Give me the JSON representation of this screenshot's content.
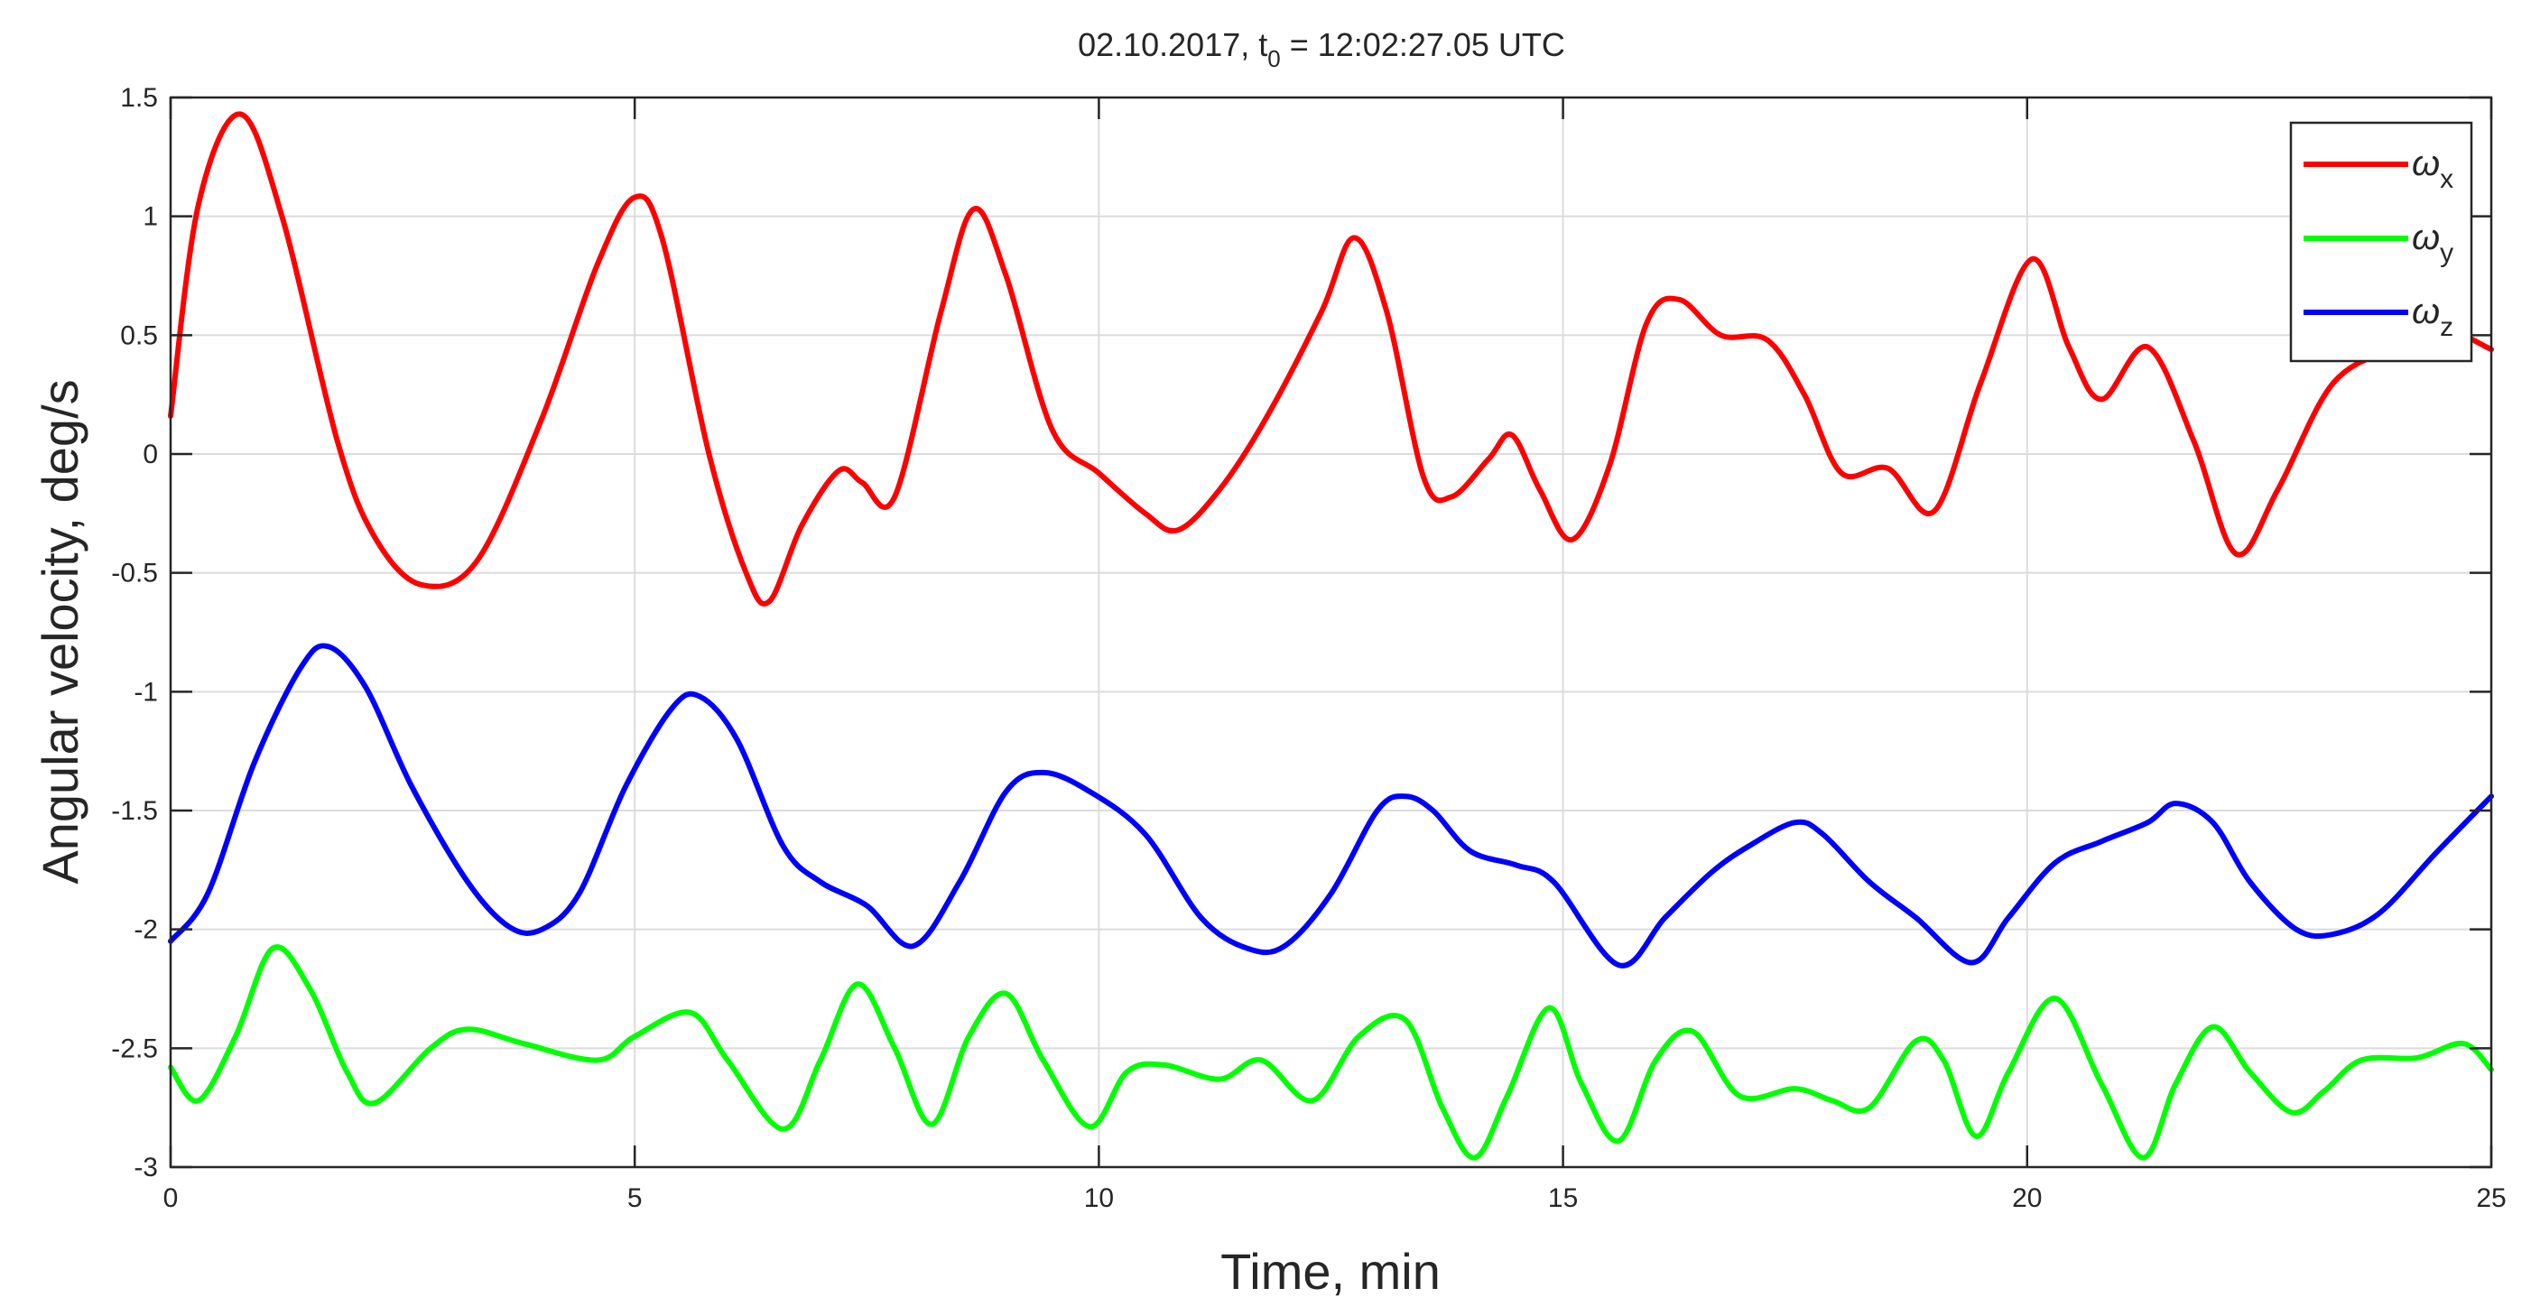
{
  "chart_data": {
    "type": "line",
    "title": {
      "date": "02.10.2017, t",
      "subscript": "0",
      "rest": " = 12:02:27.05 UTC"
    },
    "xlabel": "Time, min",
    "ylabel": "Angular velocity, deg/s",
    "xlim": [
      0,
      25
    ],
    "ylim": [
      -3,
      1.5
    ],
    "xticks": [
      0,
      5,
      10,
      15,
      20,
      25
    ],
    "xtick_labels": [
      "0",
      "5",
      "10",
      "15",
      "20",
      "25"
    ],
    "yticks": [
      -3,
      -2.5,
      -2,
      -1.5,
      -1,
      -0.5,
      0,
      0.5,
      1,
      1.5
    ],
    "ytick_labels": [
      "-3",
      "-2.5",
      "-2",
      "-1.5",
      "-1",
      "-0.5",
      "0",
      "0.5",
      "1",
      "1.5"
    ],
    "grid": true,
    "legend": {
      "position": "top-right"
    },
    "series": [
      {
        "symbol": "ω",
        "subscript": "x",
        "color": "#ff0000",
        "points": [
          [
            0,
            0.16
          ],
          [
            0.3,
            1.05
          ],
          [
            0.75,
            1.43
          ],
          [
            1.2,
            1.0
          ],
          [
            1.8,
            0.05
          ],
          [
            2.2,
            -0.35
          ],
          [
            2.7,
            -0.55
          ],
          [
            3.3,
            -0.45
          ],
          [
            4.0,
            0.15
          ],
          [
            4.6,
            0.8
          ],
          [
            5.0,
            1.08
          ],
          [
            5.3,
            0.9
          ],
          [
            5.8,
            0.0
          ],
          [
            6.2,
            -0.5
          ],
          [
            6.45,
            -0.62
          ],
          [
            6.8,
            -0.3
          ],
          [
            7.2,
            -0.07
          ],
          [
            7.45,
            -0.12
          ],
          [
            7.8,
            -0.18
          ],
          [
            8.3,
            0.6
          ],
          [
            8.65,
            1.03
          ],
          [
            9.0,
            0.75
          ],
          [
            9.5,
            0.1
          ],
          [
            10.0,
            -0.08
          ],
          [
            10.5,
            -0.25
          ],
          [
            10.85,
            -0.32
          ],
          [
            11.3,
            -0.15
          ],
          [
            11.8,
            0.15
          ],
          [
            12.4,
            0.6
          ],
          [
            12.75,
            0.91
          ],
          [
            13.1,
            0.6
          ],
          [
            13.5,
            -0.1
          ],
          [
            13.8,
            -0.18
          ],
          [
            14.2,
            -0.02
          ],
          [
            14.45,
            0.08
          ],
          [
            14.75,
            -0.15
          ],
          [
            15.1,
            -0.36
          ],
          [
            15.5,
            -0.05
          ],
          [
            15.9,
            0.55
          ],
          [
            16.25,
            0.65
          ],
          [
            16.7,
            0.5
          ],
          [
            17.2,
            0.48
          ],
          [
            17.6,
            0.25
          ],
          [
            18.0,
            -0.08
          ],
          [
            18.5,
            -0.06
          ],
          [
            19.0,
            -0.24
          ],
          [
            19.5,
            0.3
          ],
          [
            20.05,
            0.82
          ],
          [
            20.45,
            0.45
          ],
          [
            20.8,
            0.23
          ],
          [
            21.3,
            0.45
          ],
          [
            21.8,
            0.05
          ],
          [
            22.25,
            -0.42
          ],
          [
            22.7,
            -0.15
          ],
          [
            23.3,
            0.3
          ],
          [
            24.0,
            0.45
          ],
          [
            24.5,
            0.52
          ],
          [
            25.0,
            0.44
          ]
        ]
      },
      {
        "symbol": "ω",
        "subscript": "y",
        "color": "#00ff00",
        "points": [
          [
            0,
            -2.58
          ],
          [
            0.3,
            -2.72
          ],
          [
            0.7,
            -2.45
          ],
          [
            1.1,
            -2.08
          ],
          [
            1.5,
            -2.25
          ],
          [
            1.9,
            -2.6
          ],
          [
            2.2,
            -2.73
          ],
          [
            2.8,
            -2.5
          ],
          [
            3.2,
            -2.42
          ],
          [
            3.8,
            -2.48
          ],
          [
            4.6,
            -2.55
          ],
          [
            5.0,
            -2.45
          ],
          [
            5.6,
            -2.35
          ],
          [
            6.0,
            -2.55
          ],
          [
            6.6,
            -2.84
          ],
          [
            7.0,
            -2.55
          ],
          [
            7.4,
            -2.23
          ],
          [
            7.8,
            -2.5
          ],
          [
            8.2,
            -2.82
          ],
          [
            8.6,
            -2.45
          ],
          [
            9.0,
            -2.27
          ],
          [
            9.4,
            -2.55
          ],
          [
            9.9,
            -2.83
          ],
          [
            10.3,
            -2.6
          ],
          [
            10.7,
            -2.57
          ],
          [
            11.3,
            -2.63
          ],
          [
            11.75,
            -2.55
          ],
          [
            12.3,
            -2.72
          ],
          [
            12.8,
            -2.45
          ],
          [
            13.3,
            -2.38
          ],
          [
            13.7,
            -2.75
          ],
          [
            14.05,
            -2.96
          ],
          [
            14.4,
            -2.7
          ],
          [
            14.85,
            -2.33
          ],
          [
            15.2,
            -2.65
          ],
          [
            15.6,
            -2.89
          ],
          [
            16.0,
            -2.55
          ],
          [
            16.4,
            -2.43
          ],
          [
            16.9,
            -2.7
          ],
          [
            17.5,
            -2.67
          ],
          [
            17.9,
            -2.72
          ],
          [
            18.3,
            -2.75
          ],
          [
            18.8,
            -2.47
          ],
          [
            19.1,
            -2.55
          ],
          [
            19.45,
            -2.87
          ],
          [
            19.8,
            -2.6
          ],
          [
            20.3,
            -2.29
          ],
          [
            20.8,
            -2.65
          ],
          [
            21.25,
            -2.96
          ],
          [
            21.6,
            -2.65
          ],
          [
            22.0,
            -2.41
          ],
          [
            22.4,
            -2.6
          ],
          [
            22.85,
            -2.77
          ],
          [
            23.2,
            -2.68
          ],
          [
            23.6,
            -2.55
          ],
          [
            24.2,
            -2.54
          ],
          [
            24.7,
            -2.48
          ],
          [
            25.0,
            -2.59
          ]
        ]
      },
      {
        "symbol": "ω",
        "subscript": "z",
        "color": "#0000ff",
        "points": [
          [
            0,
            -2.05
          ],
          [
            0.4,
            -1.85
          ],
          [
            0.9,
            -1.3
          ],
          [
            1.4,
            -0.9
          ],
          [
            1.7,
            -0.81
          ],
          [
            2.1,
            -0.98
          ],
          [
            2.6,
            -1.4
          ],
          [
            3.2,
            -1.8
          ],
          [
            3.65,
            -1.99
          ],
          [
            4.0,
            -2.0
          ],
          [
            4.4,
            -1.85
          ],
          [
            4.9,
            -1.4
          ],
          [
            5.4,
            -1.07
          ],
          [
            5.7,
            -1.02
          ],
          [
            6.1,
            -1.2
          ],
          [
            6.6,
            -1.65
          ],
          [
            7.0,
            -1.8
          ],
          [
            7.5,
            -1.9
          ],
          [
            8.0,
            -2.07
          ],
          [
            8.5,
            -1.8
          ],
          [
            9.0,
            -1.42
          ],
          [
            9.4,
            -1.34
          ],
          [
            9.9,
            -1.42
          ],
          [
            10.5,
            -1.6
          ],
          [
            11.1,
            -1.95
          ],
          [
            11.6,
            -2.08
          ],
          [
            12.0,
            -2.07
          ],
          [
            12.5,
            -1.85
          ],
          [
            13.0,
            -1.5
          ],
          [
            13.3,
            -1.44
          ],
          [
            13.6,
            -1.5
          ],
          [
            14.0,
            -1.67
          ],
          [
            14.5,
            -1.73
          ],
          [
            14.9,
            -1.8
          ],
          [
            15.6,
            -2.15
          ],
          [
            16.1,
            -1.95
          ],
          [
            16.6,
            -1.76
          ],
          [
            17.0,
            -1.65
          ],
          [
            17.5,
            -1.55
          ],
          [
            17.8,
            -1.6
          ],
          [
            18.3,
            -1.8
          ],
          [
            18.8,
            -1.95
          ],
          [
            19.4,
            -2.14
          ],
          [
            19.8,
            -1.95
          ],
          [
            20.3,
            -1.72
          ],
          [
            20.8,
            -1.63
          ],
          [
            21.3,
            -1.55
          ],
          [
            21.6,
            -1.47
          ],
          [
            22.0,
            -1.55
          ],
          [
            22.4,
            -1.8
          ],
          [
            22.9,
            -2.0
          ],
          [
            23.3,
            -2.02
          ],
          [
            23.8,
            -1.93
          ],
          [
            24.4,
            -1.68
          ],
          [
            25.0,
            -1.44
          ]
        ]
      }
    ]
  }
}
